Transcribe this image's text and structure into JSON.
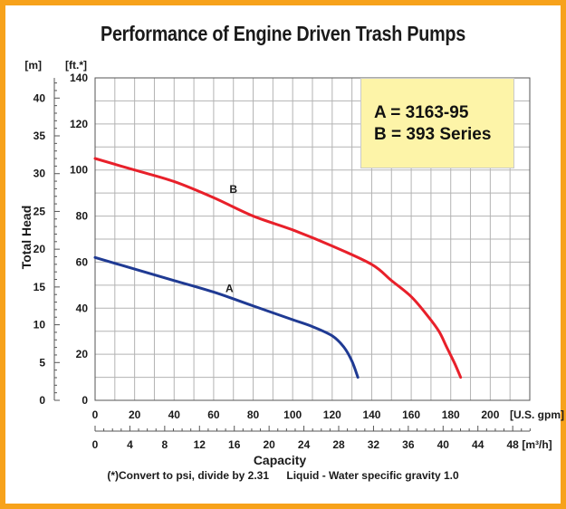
{
  "chart_data": {
    "type": "line",
    "title": "Performance of Engine Driven Trash Pumps",
    "xlabel": "Capacity",
    "ylabel": "Total Head",
    "x_unit_primary": "[U.S. gpm]",
    "x_unit_secondary": "[m³/h]",
    "y_unit_left": "[m]",
    "y_unit_right": "[ft.*]",
    "xlim": [
      0,
      220
    ],
    "ylim": [
      0,
      140
    ],
    "x_ticks_gpm": [
      "0",
      "20",
      "40",
      "60",
      "80",
      "100",
      "120",
      "140",
      "160",
      "180",
      "200"
    ],
    "x_ticks_m3h": [
      "0",
      "4",
      "8",
      "12",
      "16",
      "20",
      "24",
      "28",
      "32",
      "36",
      "40",
      "44",
      "48"
    ],
    "y_ticks_ft": [
      "0",
      "20",
      "40",
      "60",
      "80",
      "100",
      "120",
      "140"
    ],
    "y_ticks_m": [
      "0",
      "5",
      "10",
      "15",
      "20",
      "25",
      "30",
      "35",
      "40"
    ],
    "grid": true,
    "legend_lines": [
      "A = 3163-95",
      "B = 393 Series"
    ],
    "footnote_left": "(*)Convert to psi, divide by 2.31",
    "footnote_right": "Liquid - Water specific gravity 1.0",
    "series": [
      {
        "name": "A",
        "color": "#1f3a93",
        "x": [
          0,
          20,
          40,
          60,
          80,
          100,
          110,
          120,
          126,
          130,
          133
        ],
        "y": [
          62,
          57,
          52,
          47,
          41,
          35,
          32,
          28,
          23,
          17,
          10
        ]
      },
      {
        "name": "B",
        "color": "#e8202a",
        "x": [
          0,
          20,
          40,
          60,
          80,
          100,
          120,
          140,
          150,
          160,
          168,
          174,
          178,
          182,
          185
        ],
        "y": [
          105,
          100,
          95,
          88,
          80,
          74,
          67,
          59,
          52,
          45,
          37,
          30,
          23,
          16,
          10
        ]
      }
    ],
    "curve_labels": [
      {
        "text": "A",
        "x": 68,
        "y": 47
      },
      {
        "text": "B",
        "x": 70,
        "y": 90
      }
    ]
  }
}
